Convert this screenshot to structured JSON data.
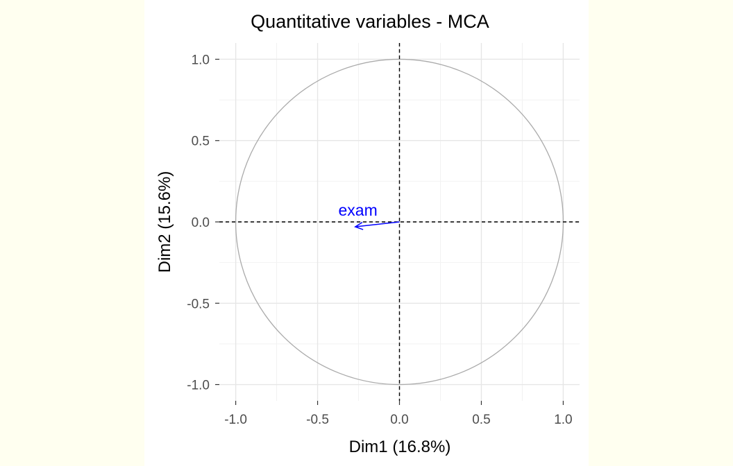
{
  "chart_data": {
    "type": "scatter",
    "title": "Quantitative variables - MCA",
    "xlabel": "Dim1 (16.8%)",
    "ylabel": "Dim2 (15.6%)",
    "xlim": [
      -1.1,
      1.1
    ],
    "ylim": [
      -1.1,
      1.1
    ],
    "xticks": [
      -1.0,
      -0.5,
      0.0,
      0.5,
      1.0
    ],
    "yticks": [
      -1.0,
      -0.5,
      0.0,
      0.5,
      1.0
    ],
    "xtick_labels": [
      "-1.0",
      "-0.5",
      "0.0",
      "0.5",
      "1.0"
    ],
    "ytick_labels": [
      "-1.0",
      "-0.5",
      "0.0",
      "0.5",
      "1.0"
    ],
    "grid": true,
    "correlation_circle": {
      "radius": 1.0,
      "color": "#aaaaaa"
    },
    "reference_lines": [
      {
        "axis": "x",
        "value": 0
      },
      {
        "axis": "y",
        "value": 0
      }
    ],
    "variables": [
      {
        "label": "exam",
        "x": -0.27,
        "y": -0.03,
        "color": "#0000ff"
      }
    ]
  }
}
